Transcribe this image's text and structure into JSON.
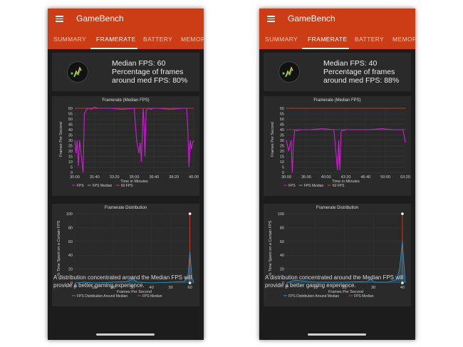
{
  "colors": {
    "appbar": "#cc3d16",
    "fps_line": "#d21cd6",
    "median_line": "#666666",
    "sixty_line": "#e2431a",
    "dist_line": "#2a9bd0"
  },
  "phones": [
    {
      "app_title": "GameBench",
      "tabs": [
        "SUMMARY",
        "FRAMERATE",
        "BATTERY",
        "MEMOR"
      ],
      "active_tab": "FRAMERATE",
      "summary": {
        "median_fps": "Median FPS: 60",
        "percentage": "Percentage of frames around med FPS: 80%",
        "icon": "fps-gauge-icon"
      },
      "framerate_chart_title": "Framerate (Median FPS)",
      "distribution_chart_title": "Framerate Distribution",
      "footer": "A distribution concentrated around the Median FPS will provide a better gaming experience."
    },
    {
      "app_title": "GameBench",
      "tabs": [
        "SUMMARY",
        "FRAMERATE",
        "BATTERY",
        "MEMOR"
      ],
      "active_tab": "FRAMERATE",
      "summary": {
        "median_fps": "Median FPS: 40",
        "percentage": "Percentage of frames around med FPS: 88%",
        "icon": "fps-gauge-icon"
      },
      "framerate_chart_title": "Framerate (Median FPS)",
      "distribution_chart_title": "Framerate Distribution",
      "footer": "A distribution concentrated around the Median FPS will provide a better gaming experience."
    }
  ],
  "chart_data": [
    {
      "type": "line",
      "title": "Framerate (Median FPS)",
      "xlabel": "Time in Minutes",
      "ylabel": "Frames Per Second",
      "x_ticks": [
        "30:00",
        "31:40",
        "33:20",
        "35:00",
        "36:40",
        "38:20",
        "40:00"
      ],
      "y_ticks": [
        "0",
        "5",
        "10",
        "15",
        "20",
        "25",
        "30",
        "35",
        "40",
        "45",
        "50",
        "55",
        "60"
      ],
      "ylim": [
        0,
        62
      ],
      "legend": [
        "FPS",
        "FPS Median",
        "60 FPS"
      ],
      "median": 60,
      "series": [
        {
          "name": "FPS",
          "x": [
            0,
            0.01,
            0.02,
            0.03,
            0.04,
            0.07,
            0.08,
            0.1,
            0.12,
            0.14,
            0.16,
            0.2,
            0.3,
            0.4,
            0.5,
            0.52,
            0.54,
            0.55,
            0.56,
            0.575,
            0.58,
            0.59,
            0.6,
            0.62,
            0.64,
            0.66,
            0.7,
            0.8,
            0.9,
            0.94,
            0.95,
            0.96,
            0.97,
            0.98,
            0.99,
            1.0
          ],
          "y": [
            30,
            18,
            30,
            6,
            30,
            0,
            55,
            59,
            60,
            59,
            61,
            60,
            60,
            59,
            60,
            30,
            18,
            28,
            10,
            60,
            50,
            15,
            58,
            60,
            59,
            60,
            60,
            59,
            60,
            60,
            40,
            5,
            30,
            22,
            28,
            30
          ]
        }
      ]
    },
    {
      "type": "line",
      "title": "Framerate Distribution",
      "xlabel": "Frames Per Second",
      "ylabel": "% Time Spent on a Certain FPS",
      "x_ticks": [
        "0",
        "10",
        "20",
        "30",
        "40",
        "50",
        "60"
      ],
      "y_ticks": [
        "0",
        "20",
        "40",
        "60",
        "80",
        "100"
      ],
      "xlim": [
        0,
        62
      ],
      "ylim": [
        0,
        100
      ],
      "legend": [
        "FPS Distribution Around Median",
        "FPS Median"
      ],
      "median": 60,
      "series": [
        {
          "name": "FPS Distribution Around Median",
          "x": [
            0,
            5,
            10,
            20,
            27,
            29,
            30,
            31,
            33,
            40,
            50,
            57,
            59,
            60,
            61,
            62
          ],
          "y": [
            0,
            1,
            0,
            1,
            2,
            4,
            10,
            4,
            1,
            0,
            1,
            2,
            10,
            45,
            10,
            0
          ]
        }
      ]
    },
    {
      "type": "line",
      "title": "Framerate (Median FPS)",
      "xlabel": "Time in Minutes",
      "ylabel": "Frames Per Second",
      "x_ticks": [
        "30:00",
        "35:00",
        "40:00",
        "43:20",
        "46:40",
        "50:00",
        "53:20"
      ],
      "y_ticks": [
        "0",
        "5",
        "10",
        "15",
        "20",
        "25",
        "30",
        "35",
        "40",
        "45",
        "50",
        "55",
        "60"
      ],
      "ylim": [
        0,
        62
      ],
      "legend": [
        "FPS",
        "FPS Median",
        "60 FPS"
      ],
      "median": 40,
      "series": [
        {
          "name": "FPS",
          "x": [
            0,
            0.02,
            0.04,
            0.05,
            0.06,
            0.07,
            0.09,
            0.12,
            0.2,
            0.3,
            0.4,
            0.43,
            0.44,
            0.45,
            0.46,
            0.47,
            0.48,
            0.5,
            0.6,
            0.7,
            0.8,
            0.9,
            0.98,
            1.0
          ],
          "y": [
            30,
            20,
            30,
            0,
            28,
            40,
            39,
            40,
            40,
            41,
            40,
            2,
            30,
            2,
            38,
            40,
            39,
            40,
            40,
            40,
            41,
            40,
            40,
            28
          ]
        }
      ]
    },
    {
      "type": "line",
      "title": "Framerate Distribution",
      "xlabel": "Frames Per Second",
      "ylabel": "% Time Spent on a Certain FPS",
      "x_ticks": [
        "0",
        "10",
        "20",
        "30",
        "40"
      ],
      "y_ticks": [
        "0",
        "20",
        "40",
        "60",
        "80",
        "100"
      ],
      "xlim": [
        0,
        41
      ],
      "ylim": [
        0,
        100
      ],
      "legend": [
        "FPS Distribution Around Median",
        "FPS Median"
      ],
      "median": 40,
      "series": [
        {
          "name": "FPS Distribution Around Median",
          "x": [
            0,
            3,
            10,
            20,
            28,
            29,
            30,
            31,
            35,
            38,
            39,
            40,
            41
          ],
          "y": [
            0,
            4,
            1,
            1,
            2,
            6,
            2,
            1,
            1,
            5,
            20,
            60,
            0
          ]
        }
      ]
    }
  ]
}
